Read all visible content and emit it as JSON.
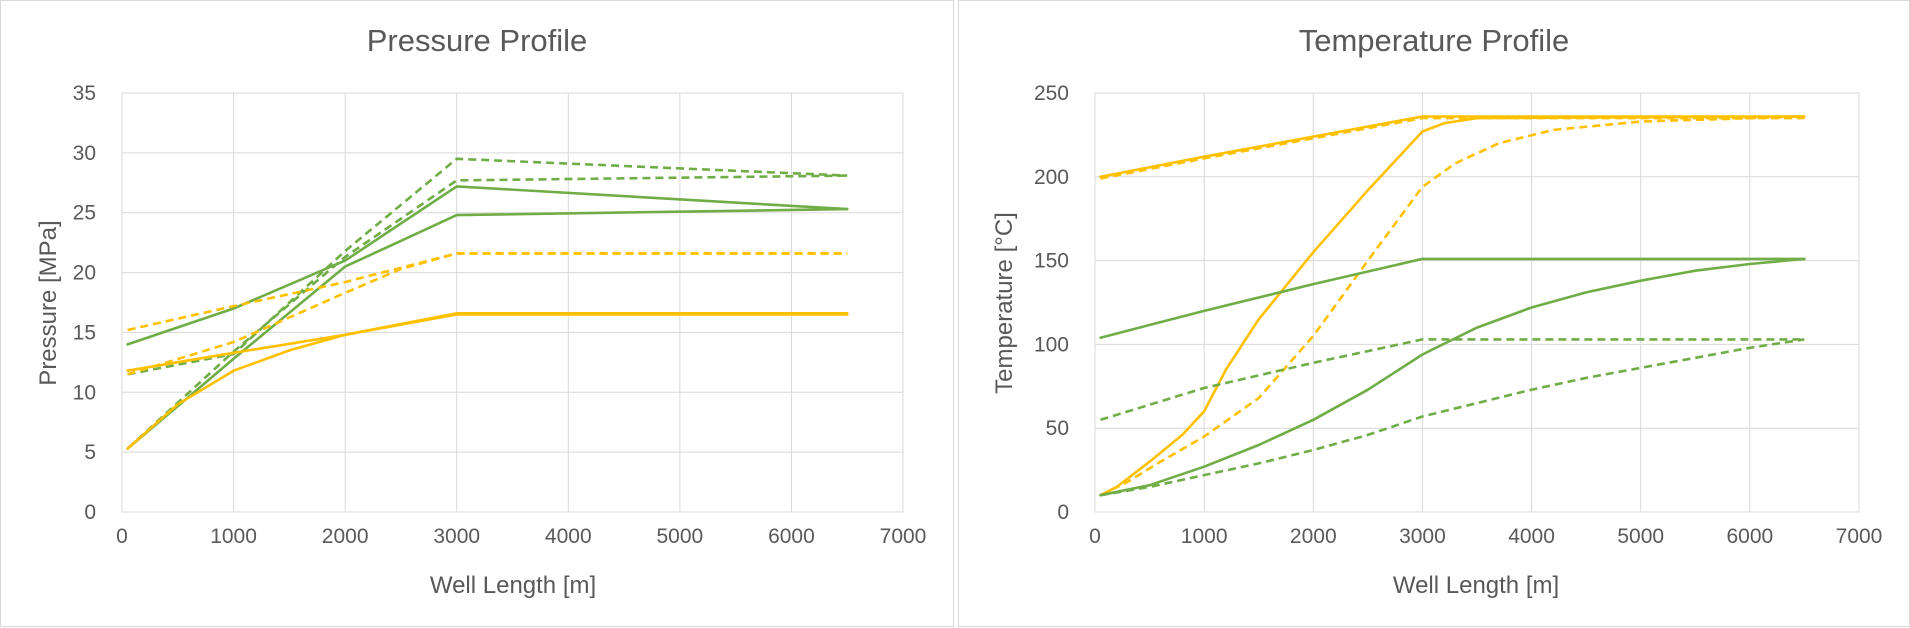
{
  "chart_data": [
    {
      "type": "line",
      "title": "Pressure Profile",
      "xlabel": "Well Length [m]",
      "ylabel": "Pressure [MPa]",
      "xlim": [
        0,
        7000
      ],
      "ylim": [
        0,
        35
      ],
      "xticks": [
        "0",
        "1000",
        "2000",
        "3000",
        "4000",
        "5000",
        "6000",
        "7000"
      ],
      "yticks": [
        "0",
        "5",
        "10",
        "15",
        "20",
        "25",
        "30",
        "35"
      ],
      "grid": true,
      "legend": "none",
      "colors": {
        "green": "#70ad47",
        "yellow": "#ffc000"
      },
      "series": [
        {
          "color": "green",
          "dash": false,
          "points": [
            [
              50,
              14.0
            ],
            [
              1000,
              17.0
            ],
            [
              2000,
              21.0
            ],
            [
              3000,
              27.2
            ],
            [
              6500,
              25.3
            ]
          ]
        },
        {
          "color": "green",
          "dash": false,
          "points": [
            [
              50,
              5.3
            ],
            [
              1000,
              12.8
            ],
            [
              2000,
              20.5
            ],
            [
              3000,
              24.8
            ],
            [
              6500,
              25.3
            ]
          ]
        },
        {
          "color": "green",
          "dash": true,
          "points": [
            [
              50,
              11.5
            ],
            [
              1000,
              13.2
            ],
            [
              2000,
              21.8
            ],
            [
              3000,
              29.5
            ],
            [
              6500,
              28.1
            ]
          ]
        },
        {
          "color": "green",
          "dash": true,
          "points": [
            [
              50,
              5.3
            ],
            [
              1000,
              13.4
            ],
            [
              2000,
              21.3
            ],
            [
              3000,
              27.7
            ],
            [
              6500,
              28.1
            ]
          ]
        },
        {
          "color": "yellow",
          "dash": false,
          "points": [
            [
              50,
              11.8
            ],
            [
              1000,
              13.3
            ],
            [
              2000,
              14.8
            ],
            [
              3000,
              16.6
            ],
            [
              6500,
              16.6
            ]
          ]
        },
        {
          "color": "yellow",
          "dash": false,
          "points": [
            [
              50,
              5.3
            ],
            [
              500,
              9.0
            ],
            [
              1000,
              11.8
            ],
            [
              1500,
              13.5
            ],
            [
              2000,
              14.8
            ],
            [
              3000,
              16.5
            ],
            [
              6500,
              16.5
            ]
          ]
        },
        {
          "color": "yellow",
          "dash": true,
          "points": [
            [
              50,
              15.2
            ],
            [
              1000,
              17.2
            ],
            [
              2000,
              19.2
            ],
            [
              3000,
              21.6
            ],
            [
              6500,
              21.6
            ]
          ]
        },
        {
          "color": "yellow",
          "dash": true,
          "points": [
            [
              50,
              11.5
            ],
            [
              1000,
              14.2
            ],
            [
              2000,
              18.3
            ],
            [
              2500,
              20.3
            ],
            [
              3000,
              21.6
            ],
            [
              6500,
              21.6
            ]
          ]
        }
      ]
    },
    {
      "type": "line",
      "title": "Temperature Profile",
      "xlabel": "Well Length [m]",
      "ylabel": "Temperature  [°C]",
      "xlim": [
        0,
        7000
      ],
      "ylim": [
        0,
        250
      ],
      "xticks": [
        "0",
        "1000",
        "2000",
        "3000",
        "4000",
        "5000",
        "6000",
        "7000"
      ],
      "yticks": [
        "0",
        "50",
        "100",
        "150",
        "200",
        "250"
      ],
      "grid": true,
      "legend": "none",
      "colors": {
        "green": "#70ad47",
        "yellow": "#ffc000"
      },
      "series": [
        {
          "color": "yellow",
          "dash": false,
          "points": [
            [
              50,
              200
            ],
            [
              1000,
              212
            ],
            [
              2000,
              224
            ],
            [
              3000,
              236
            ],
            [
              6500,
              236
            ]
          ]
        },
        {
          "color": "yellow",
          "dash": true,
          "points": [
            [
              50,
              199
            ],
            [
              1000,
              211
            ],
            [
              2000,
              223
            ],
            [
              3000,
              235
            ],
            [
              6500,
              235
            ]
          ]
        },
        {
          "color": "yellow",
          "dash": false,
          "points": [
            [
              50,
              10
            ],
            [
              200,
              15
            ],
            [
              500,
              30
            ],
            [
              800,
              46
            ],
            [
              1000,
              60
            ],
            [
              1200,
              85
            ],
            [
              1500,
              115
            ],
            [
              2000,
              155
            ],
            [
              2500,
              192
            ],
            [
              3000,
              227
            ],
            [
              3200,
              232
            ],
            [
              3500,
              235
            ],
            [
              6500,
              236
            ]
          ]
        },
        {
          "color": "yellow",
          "dash": true,
          "points": [
            [
              50,
              10
            ],
            [
              300,
              18
            ],
            [
              600,
              30
            ],
            [
              1000,
              45
            ],
            [
              1500,
              68
            ],
            [
              2000,
              105
            ],
            [
              2500,
              150
            ],
            [
              3000,
              194
            ],
            [
              3300,
              208
            ],
            [
              3700,
              220
            ],
            [
              4200,
              228
            ],
            [
              5000,
              233
            ],
            [
              6500,
              236
            ]
          ]
        },
        {
          "color": "green",
          "dash": false,
          "points": [
            [
              50,
              104
            ],
            [
              1000,
              120
            ],
            [
              2000,
              136
            ],
            [
              3000,
              151
            ],
            [
              6500,
              151
            ]
          ]
        },
        {
          "color": "green",
          "dash": true,
          "points": [
            [
              50,
              55
            ],
            [
              1000,
              74
            ],
            [
              2000,
              89
            ],
            [
              3000,
              103
            ],
            [
              6500,
              103
            ]
          ]
        },
        {
          "color": "green",
          "dash": false,
          "points": [
            [
              50,
              10
            ],
            [
              500,
              16
            ],
            [
              1000,
              27
            ],
            [
              1500,
              40
            ],
            [
              2000,
              55
            ],
            [
              2500,
              73
            ],
            [
              3000,
              94
            ],
            [
              3500,
              110
            ],
            [
              4000,
              122
            ],
            [
              4500,
              131
            ],
            [
              5000,
              138
            ],
            [
              5500,
              144
            ],
            [
              6000,
              148
            ],
            [
              6500,
              151
            ]
          ]
        },
        {
          "color": "green",
          "dash": true,
          "points": [
            [
              50,
              10
            ],
            [
              500,
              15
            ],
            [
              1000,
              22
            ],
            [
              1500,
              29
            ],
            [
              2000,
              37
            ],
            [
              2500,
              46
            ],
            [
              3000,
              57
            ],
            [
              3500,
              65
            ],
            [
              4000,
              73
            ],
            [
              4500,
              80
            ],
            [
              5000,
              86
            ],
            [
              5500,
              92
            ],
            [
              6000,
              98
            ],
            [
              6500,
              103
            ]
          ]
        }
      ]
    }
  ]
}
